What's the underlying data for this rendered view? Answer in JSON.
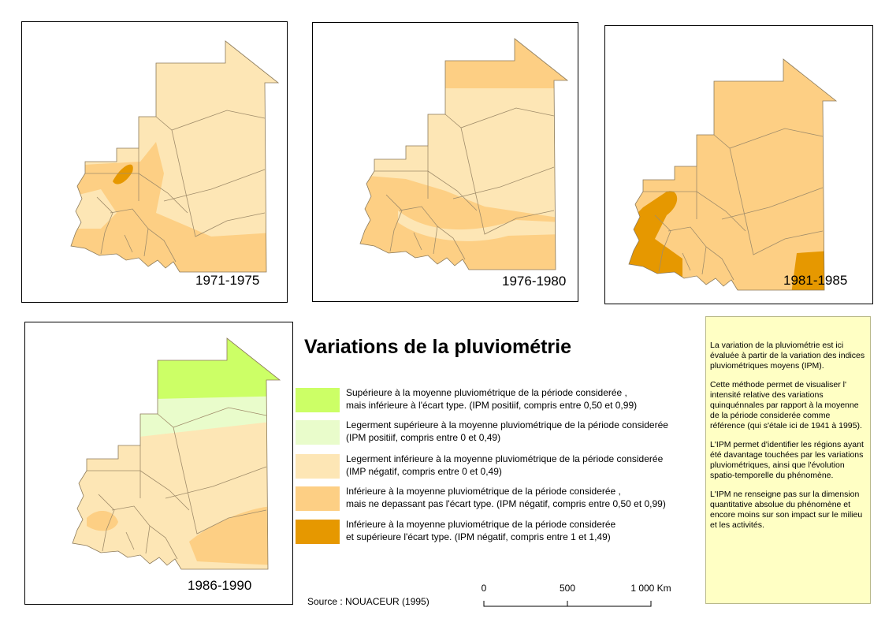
{
  "maps": [
    {
      "period": "1971-1975"
    },
    {
      "period": "1976-1980"
    },
    {
      "period": "1981-1985"
    },
    {
      "period": "1986-1990"
    }
  ],
  "legend": {
    "title": "Variations de la pluviométrie",
    "items": [
      {
        "color": "#ccff66",
        "lines": [
          "Supérieure à la moyenne pluviométrique de la période considerée ,",
          "mais inférieure à l'écart type. (IPM positiif, compris entre 0,50 et 0,99)"
        ]
      },
      {
        "color": "#e9fccb",
        "lines": [
          "Legerment supérieure à la moyenne pluviométrique de la période considerée",
          "(IPM positiif, compris entre 0 et 0,49)"
        ]
      },
      {
        "color": "#fde6b5",
        "lines": [
          "Legerment inférieure à la moyenne pluviométrique de la période considerée",
          "(IMP négatif, compris entre 0 et 0,49)"
        ]
      },
      {
        "color": "#fdcf84",
        "lines": [
          "Inférieure à la moyenne pluviométrique de la période considerée ,",
          "mais ne depassant pas l'écart type. (IPM négatif, compris entre 0,50 et 0,99)"
        ]
      },
      {
        "color": "#e69800",
        "lines": [
          "Inférieure à la moyenne pluviométrique de la période considerée",
          "et supérieure l'écart type. (IPM négatif, compris entre 1 et 1,49)"
        ]
      }
    ]
  },
  "source": "Source :  NOUACEUR (1995)",
  "scale": {
    "labels": [
      "0",
      "500",
      "1 000 Km"
    ]
  },
  "info_box": {
    "paragraphs": [
      "La variation de la pluviométrie est ici évaluée à partir de la variation des indices pluviométriques moyens (IPM).",
      "Cette méthode permet de visualiser l' intensité relative des variations quinquénnales par rapport à la moyenne de la période considerée comme référence (qui s'étale ici de 1941 à 1995).",
      "L'IPM permet d'identifier les régions ayant été davantage touchées par les variations pluviométriques, ainsi que l'évolution spatio-temporelle du phénomène.",
      "L'IPM ne renseigne pas sur la dimension quantitative absolue du phénomène et encore moins sur son impact sur le milieu et les activités."
    ]
  },
  "colors": {
    "very_positive": "#ccff66",
    "slightly_positive": "#e9fccb",
    "slightly_negative": "#fde6b5",
    "negative": "#fdcf84",
    "strongly_negative": "#e69800",
    "info_background": "#ffffc4"
  }
}
